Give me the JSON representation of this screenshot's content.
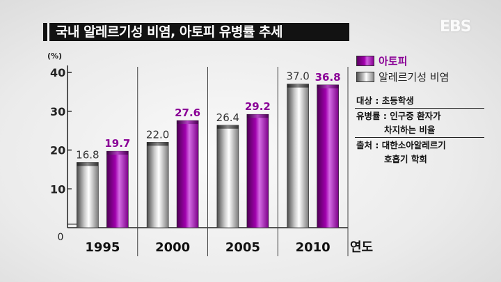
{
  "header": {
    "title": "국내 알레르기성 비염, 아토피 유병률 추세",
    "broadcaster_logo": "EBS"
  },
  "legend": [
    {
      "label": "아토피",
      "color": "#a400b0"
    },
    {
      "label": "알레르기성 비염",
      "color": "#b8b8b8"
    }
  ],
  "info": {
    "subject": "대상 : 초등학생",
    "prevalence_line1": "유병률 : 인구중 환자가",
    "prevalence_line2": "차지하는 비율",
    "source_line1": "출처 : 대한소아알레르기",
    "source_line2": "호흡기 학회"
  },
  "chart_data": {
    "type": "bar",
    "categories": [
      "1995",
      "2000",
      "2005",
      "2010"
    ],
    "series": [
      {
        "name": "알레르기성 비염",
        "values": [
          16.8,
          22.0,
          26.4,
          37.0
        ],
        "labels": [
          "16.8",
          "22.0",
          "26.4",
          "37.0"
        ],
        "color": "#b8b8b8"
      },
      {
        "name": "아토피",
        "values": [
          19.7,
          27.6,
          29.2,
          36.8
        ],
        "labels": [
          "19.7",
          "27.6",
          "29.2",
          "36.8"
        ],
        "color": "#a400b0"
      }
    ],
    "yunit": "(%)",
    "xlabel": "연도",
    "ylim": [
      0,
      40
    ],
    "yticks": [
      "0",
      "10",
      "20",
      "30",
      "40"
    ],
    "grid": false,
    "legend_position": "right"
  }
}
